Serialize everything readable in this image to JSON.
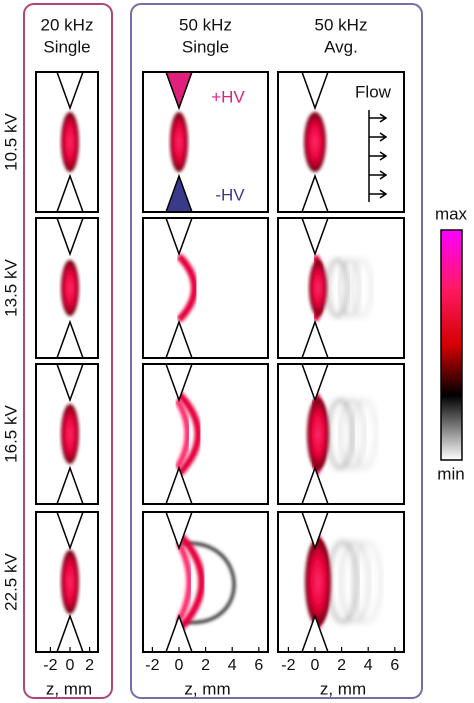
{
  "columns": [
    {
      "line1": "20 kHz",
      "line2": "Single"
    },
    {
      "line1": "50 kHz",
      "line2": "Single"
    },
    {
      "line1": "50 kHz",
      "line2": "Avg."
    }
  ],
  "rows": [
    "10.5 kV",
    "13.5 kV",
    "16.5 kV",
    "22.5 kV"
  ],
  "annotations": {
    "plus_hv": "+HV",
    "minus_hv": "-HV",
    "flow": "Flow"
  },
  "colorbar": {
    "max": "max",
    "min": "min"
  },
  "axes": [
    {
      "ticks": [
        -2,
        0,
        2
      ],
      "label": "z, mm"
    },
    {
      "ticks": [
        -2,
        0,
        2,
        4,
        6
      ],
      "label": "z, mm"
    },
    {
      "ticks": [
        -2,
        0,
        2,
        4,
        6
      ],
      "label": "z, mm"
    }
  ]
}
